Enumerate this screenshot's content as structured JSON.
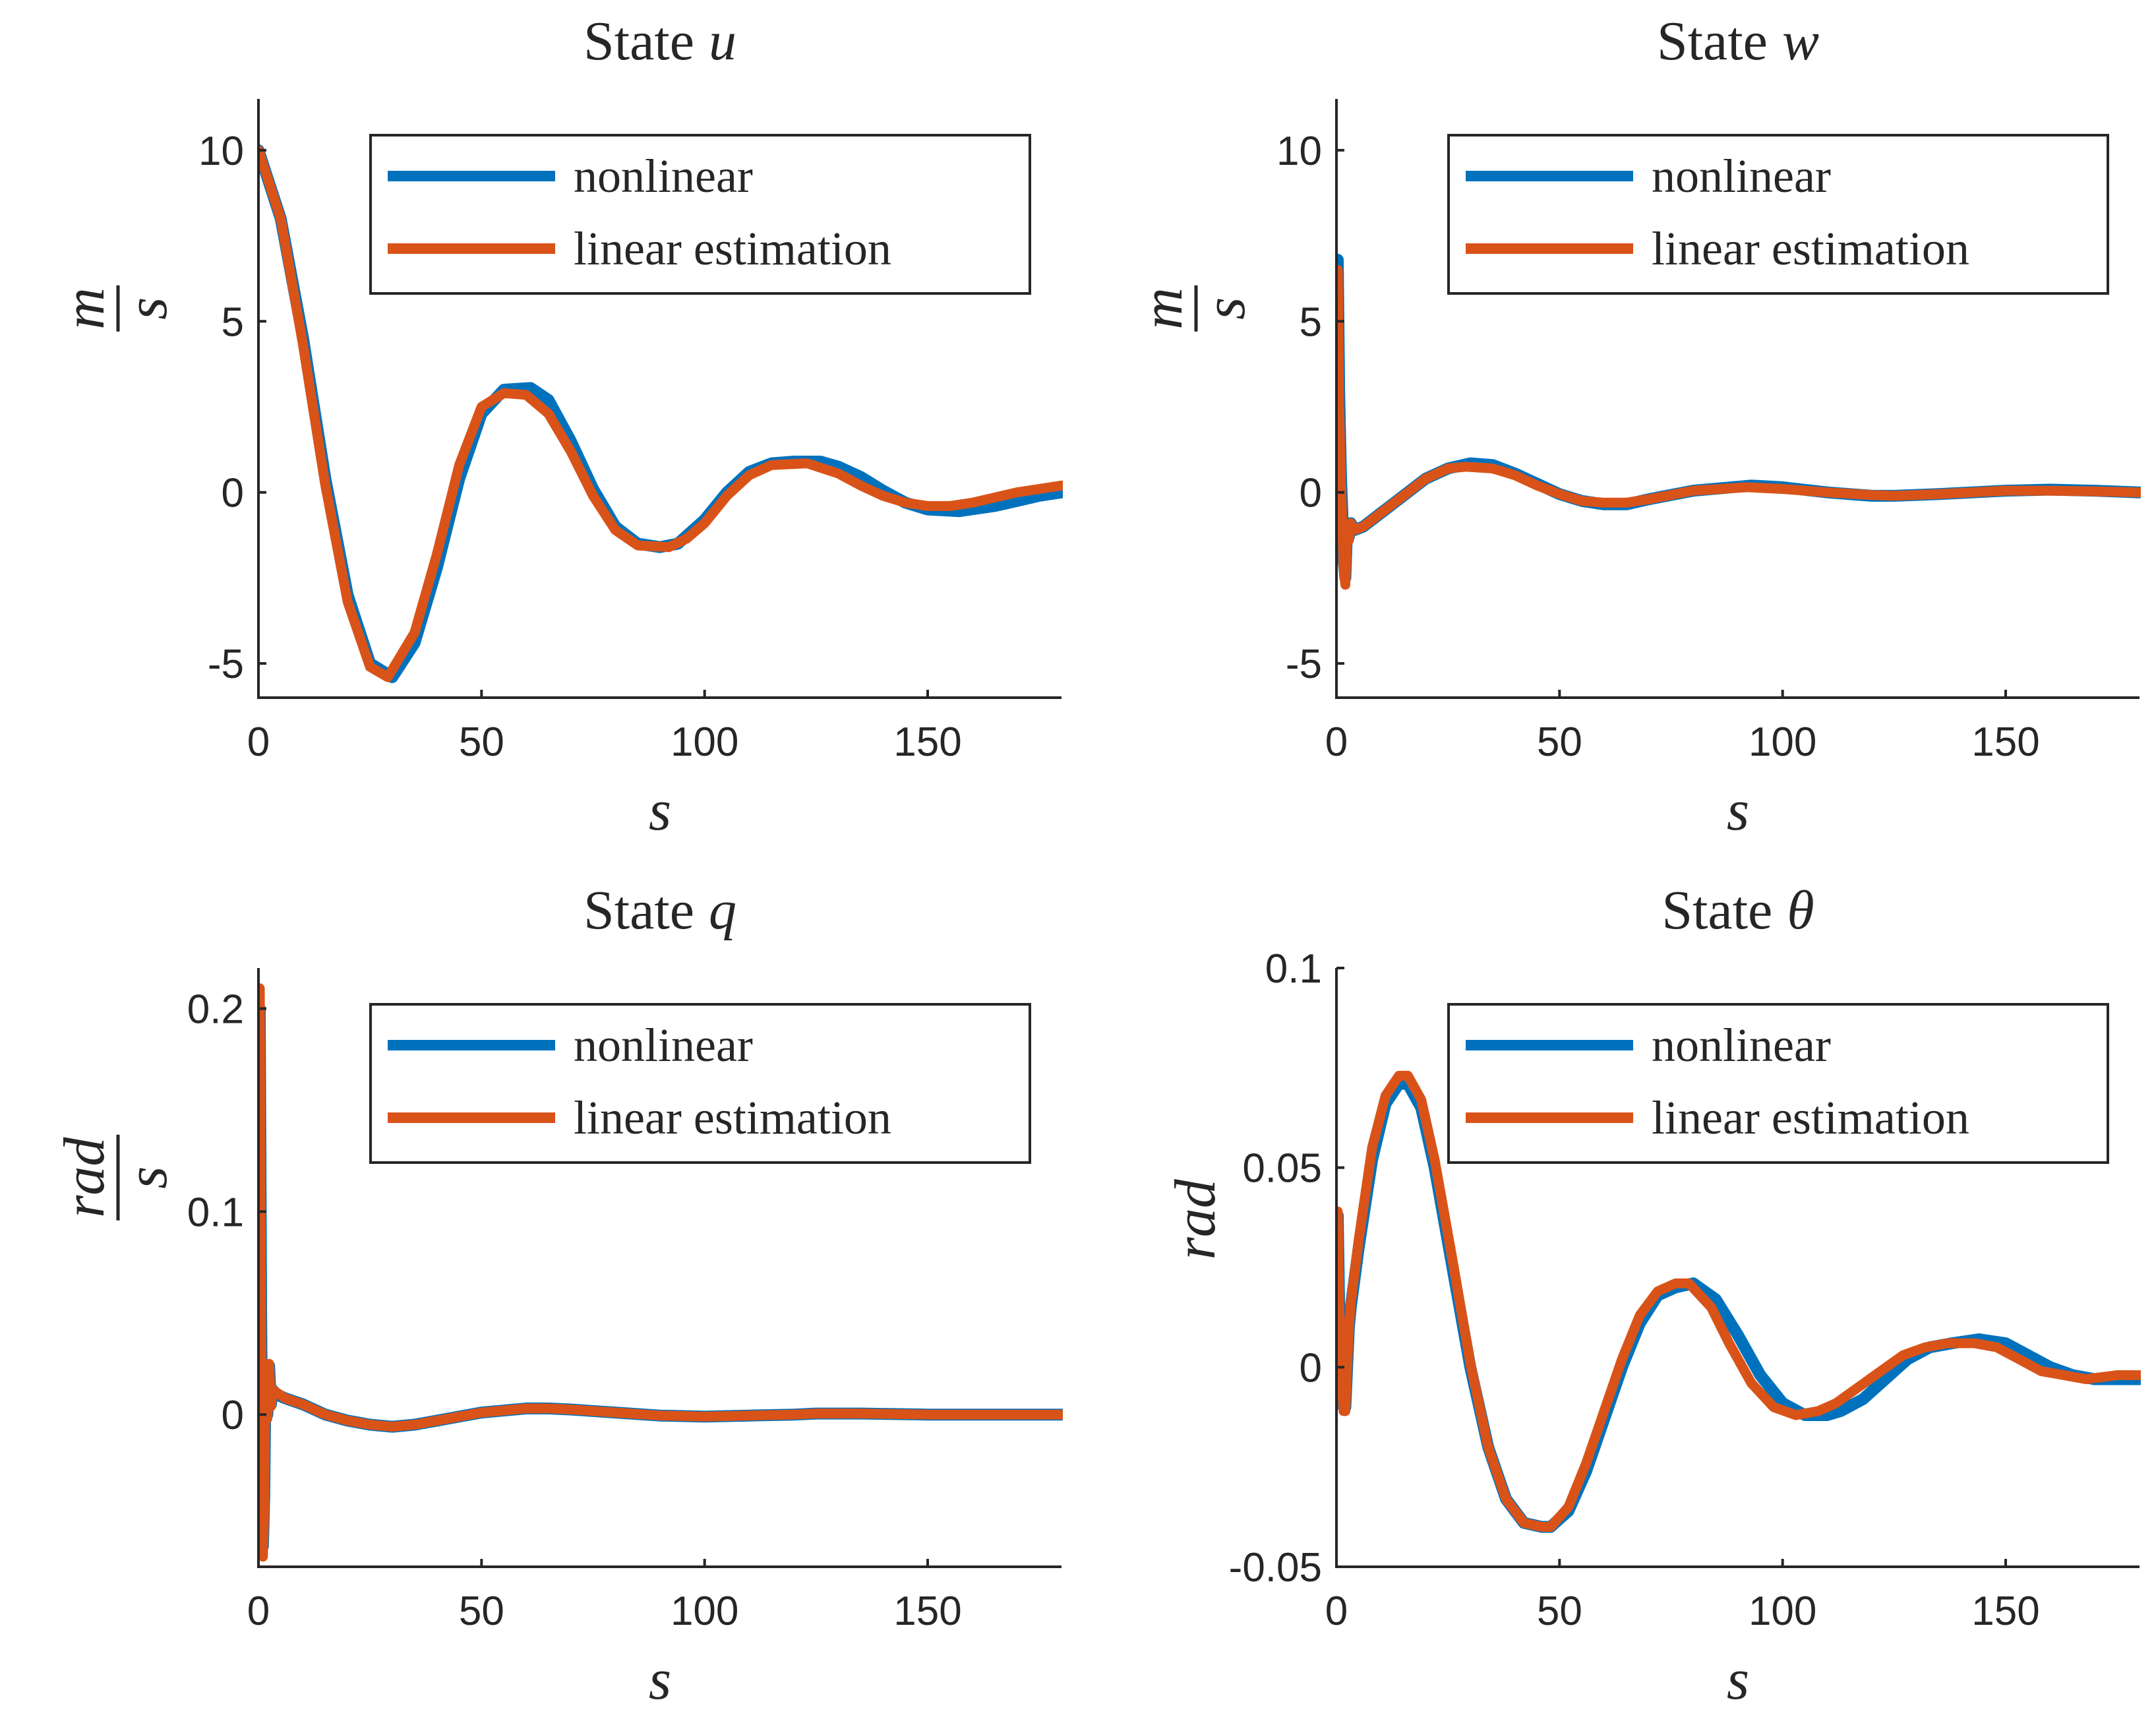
{
  "chart_data": [
    {
      "type": "line",
      "id": "u",
      "title_prefix": "State",
      "title_var": "u",
      "xlabel": "s",
      "ylabel": {
        "numerator": "m",
        "denominator": "s"
      },
      "xlim": [
        0,
        180
      ],
      "ylim": [
        -6,
        11.5
      ],
      "xticks": [
        0,
        50,
        100,
        150
      ],
      "yticks": [
        -5,
        0,
        5,
        10
      ],
      "ytick_labels": [
        "-5",
        "0",
        "5",
        "10"
      ],
      "legend_position": "top-right",
      "series": [
        {
          "name": "nonlinear",
          "color": "#0072BD",
          "x": [
            0,
            5,
            10,
            15,
            20,
            25,
            30,
            35,
            40,
            45,
            50,
            55,
            61,
            65,
            70,
            75,
            80,
            85,
            90,
            94,
            100,
            105,
            110,
            115,
            120,
            126,
            130,
            135,
            140,
            145,
            150,
            157,
            165,
            170,
            175,
            180
          ],
          "y": [
            10,
            8.0,
            4.5,
            0.4,
            -3.0,
            -5.0,
            -5.4,
            -4.4,
            -2.2,
            0.4,
            2.3,
            3.0,
            3.05,
            2.7,
            1.5,
            0.1,
            -1.0,
            -1.5,
            -1.6,
            -1.5,
            -0.8,
            0.0,
            0.6,
            0.85,
            0.9,
            0.9,
            0.75,
            0.45,
            0.05,
            -0.3,
            -0.5,
            -0.55,
            -0.4,
            -0.25,
            -0.1,
            0.0
          ]
        },
        {
          "name": "linear estimation",
          "color": "#D95319",
          "x": [
            0,
            5,
            10,
            15,
            20,
            25,
            29,
            35,
            40,
            45,
            50,
            55,
            60,
            65,
            70,
            75,
            80,
            85,
            92,
            96,
            100,
            105,
            110,
            115,
            123,
            130,
            135,
            140,
            145,
            150,
            155,
            160,
            165,
            170,
            175,
            180
          ],
          "y": [
            10,
            8.0,
            4.3,
            0.2,
            -3.2,
            -5.1,
            -5.4,
            -4.1,
            -1.8,
            0.8,
            2.5,
            2.9,
            2.85,
            2.3,
            1.2,
            -0.1,
            -1.1,
            -1.55,
            -1.6,
            -1.35,
            -0.9,
            -0.1,
            0.5,
            0.8,
            0.85,
            0.55,
            0.2,
            -0.1,
            -0.3,
            -0.4,
            -0.4,
            -0.3,
            -0.15,
            0.0,
            0.1,
            0.2
          ]
        }
      ]
    },
    {
      "type": "line",
      "id": "w",
      "title_prefix": "State",
      "title_var": "w",
      "xlabel": "s",
      "ylabel": {
        "numerator": "m",
        "denominator": "s"
      },
      "xlim": [
        0,
        180
      ],
      "ylim": [
        -6,
        11.5
      ],
      "xticks": [
        0,
        50,
        100,
        150
      ],
      "yticks": [
        -5,
        0,
        5,
        10
      ],
      "ytick_labels": [
        "-5",
        "0",
        "5",
        "10"
      ],
      "legend_position": "top-right",
      "series": [
        {
          "name": "nonlinear",
          "color": "#0072BD",
          "x": [
            0,
            0.3,
            0.6,
            1.0,
            1.3,
            1.6,
            2.0,
            2.4,
            2.8,
            3.2,
            4,
            6,
            10,
            15,
            20,
            25,
            30,
            35,
            40,
            45,
            50,
            55,
            60,
            65,
            70,
            80,
            93,
            100,
            110,
            120,
            125,
            135,
            150,
            160,
            170,
            180
          ],
          "y": [
            5.0,
            6.8,
            3.0,
            0.5,
            -0.5,
            -2.0,
            -2.5,
            -1.0,
            -1.3,
            -0.9,
            -1.1,
            -1.0,
            -0.6,
            -0.1,
            0.4,
            0.7,
            0.85,
            0.8,
            0.55,
            0.25,
            -0.05,
            -0.25,
            -0.35,
            -0.35,
            -0.2,
            0.05,
            0.2,
            0.15,
            0.0,
            -0.1,
            -0.1,
            -0.05,
            0.05,
            0.08,
            0.05,
            0.0
          ]
        },
        {
          "name": "linear estimation",
          "color": "#D95319",
          "x": [
            0,
            0.3,
            0.6,
            1.0,
            1.3,
            1.6,
            2.0,
            2.4,
            2.8,
            3.2,
            4,
            6,
            10,
            15,
            20,
            25,
            29,
            35,
            40,
            45,
            50,
            55,
            60,
            65,
            70,
            80,
            92,
            100,
            110,
            120,
            125,
            135,
            150,
            160,
            170,
            180
          ],
          "y": [
            5.0,
            6.5,
            2.5,
            0.3,
            -0.8,
            -2.2,
            -2.7,
            -1.2,
            -1.4,
            -0.9,
            -1.1,
            -1.0,
            -0.6,
            -0.1,
            0.4,
            0.7,
            0.75,
            0.7,
            0.5,
            0.2,
            -0.05,
            -0.25,
            -0.3,
            -0.3,
            -0.2,
            0.05,
            0.15,
            0.1,
            0.0,
            -0.08,
            -0.1,
            -0.05,
            0.05,
            0.05,
            0.03,
            0.0
          ]
        }
      ]
    },
    {
      "type": "line",
      "id": "q",
      "title_prefix": "State",
      "title_var": "q",
      "xlabel": "s",
      "ylabel": {
        "numerator": "rad",
        "denominator": "s"
      },
      "xlim": [
        0,
        180
      ],
      "ylim": [
        -0.075,
        0.22
      ],
      "xticks": [
        0,
        50,
        100,
        150
      ],
      "yticks": [
        0,
        0.1,
        0.2
      ],
      "ytick_labels": [
        "0",
        "0.1",
        "0.2"
      ],
      "legend_position": "top-right",
      "series": [
        {
          "name": "nonlinear",
          "color": "#0072BD",
          "x": [
            0,
            0.3,
            0.6,
            1.0,
            1.3,
            1.6,
            2.0,
            2.4,
            2.8,
            3.2,
            4,
            6,
            10,
            15,
            20,
            25,
            30,
            35,
            40,
            45,
            50,
            55,
            60,
            65,
            70,
            80,
            90,
            100,
            110,
            120,
            125,
            135,
            150,
            160,
            170,
            180
          ],
          "y": [
            0.0,
            0.2,
            0.05,
            -0.065,
            -0.04,
            0.02,
            0.0,
            0.024,
            0.005,
            0.012,
            0.01,
            0.008,
            0.005,
            0.0,
            -0.003,
            -0.005,
            -0.006,
            -0.005,
            -0.003,
            -0.001,
            0.001,
            0.002,
            0.003,
            0.003,
            0.0025,
            0.001,
            -0.0005,
            -0.001,
            -0.0005,
            0.0,
            0.0005,
            0.0005,
            0.0,
            0.0,
            0.0,
            0.0
          ]
        },
        {
          "name": "linear estimation",
          "color": "#D95319",
          "x": [
            0,
            0.3,
            0.6,
            1.0,
            1.3,
            1.6,
            2.0,
            2.4,
            2.8,
            3.2,
            4,
            6,
            10,
            15,
            20,
            25,
            30,
            35,
            40,
            45,
            50,
            55,
            60,
            65,
            70,
            80,
            90,
            100,
            110,
            120,
            125,
            135,
            150,
            160,
            170,
            180
          ],
          "y": [
            0.0,
            0.21,
            0.04,
            -0.07,
            -0.045,
            0.018,
            -0.002,
            0.025,
            0.004,
            0.012,
            0.011,
            0.008,
            0.005,
            0.0,
            -0.003,
            -0.005,
            -0.006,
            -0.005,
            -0.003,
            -0.001,
            0.001,
            0.002,
            0.003,
            0.003,
            0.0025,
            0.001,
            -0.0005,
            -0.001,
            -0.0005,
            0.0,
            0.0005,
            0.0005,
            0.0,
            0.0,
            0.0,
            0.0
          ]
        }
      ]
    },
    {
      "type": "line",
      "id": "theta",
      "title_prefix": "State",
      "title_var": "θ",
      "xlabel": "s",
      "ylabel": {
        "numerator": "rad",
        "denominator": ""
      },
      "xlim": [
        0,
        180
      ],
      "ylim": [
        -0.05,
        0.1
      ],
      "xticks": [
        0,
        50,
        100,
        150
      ],
      "yticks": [
        -0.05,
        0,
        0.05,
        0.1
      ],
      "ytick_labels": [
        "-0.05",
        "0",
        "0.05",
        "0.1"
      ],
      "legend_position": "top-right",
      "series": [
        {
          "name": "nonlinear",
          "color": "#0072BD",
          "x": [
            0,
            0.3,
            0.6,
            1.0,
            1.3,
            1.6,
            2.0,
            2.4,
            2.8,
            3.2,
            5,
            8,
            11,
            14,
            16,
            19,
            22,
            26,
            30,
            34,
            38,
            42,
            46,
            48,
            52,
            56,
            60,
            64,
            68,
            72,
            76,
            80,
            85,
            90,
            95,
            100,
            105,
            110,
            113,
            118,
            123,
            128,
            133,
            138,
            144,
            150,
            155,
            160,
            165,
            170,
            175,
            180
          ],
          "y": [
            0.0,
            0.038,
            0.015,
            0.002,
            -0.003,
            -0.01,
            -0.01,
            0.0,
            0.01,
            0.015,
            0.03,
            0.052,
            0.066,
            0.071,
            0.071,
            0.065,
            0.05,
            0.025,
            0.0,
            -0.02,
            -0.033,
            -0.039,
            -0.04,
            -0.04,
            -0.036,
            -0.026,
            -0.013,
            0.0,
            0.011,
            0.018,
            0.02,
            0.021,
            0.017,
            0.008,
            -0.002,
            -0.009,
            -0.012,
            -0.012,
            -0.011,
            -0.008,
            -0.003,
            0.002,
            0.005,
            0.006,
            0.007,
            0.006,
            0.003,
            0.0,
            -0.002,
            -0.003,
            -0.003,
            -0.003
          ]
        },
        {
          "name": "linear estimation",
          "color": "#D95319",
          "x": [
            0,
            0.3,
            0.6,
            1.0,
            1.3,
            1.6,
            2.0,
            2.4,
            2.8,
            3.2,
            5,
            8,
            11,
            14,
            16,
            19,
            22,
            26,
            30,
            34,
            38,
            42,
            46,
            48,
            52,
            56,
            60,
            64,
            68,
            72,
            76,
            79,
            84,
            88,
            93,
            98,
            103,
            108,
            112,
            117,
            122,
            127,
            132,
            137,
            143,
            148,
            153,
            158,
            163,
            168,
            175,
            180
          ],
          "y": [
            0.0,
            0.039,
            0.016,
            0.0,
            -0.005,
            -0.011,
            -0.011,
            0.0,
            0.01,
            0.016,
            0.032,
            0.055,
            0.068,
            0.073,
            0.073,
            0.067,
            0.052,
            0.027,
            0.001,
            -0.02,
            -0.033,
            -0.039,
            -0.04,
            -0.04,
            -0.035,
            -0.024,
            -0.011,
            0.002,
            0.013,
            0.019,
            0.021,
            0.021,
            0.015,
            0.006,
            -0.004,
            -0.01,
            -0.012,
            -0.011,
            -0.009,
            -0.005,
            -0.001,
            0.003,
            0.005,
            0.006,
            0.006,
            0.005,
            0.002,
            -0.001,
            -0.002,
            -0.003,
            -0.002,
            -0.002
          ]
        }
      ]
    }
  ]
}
